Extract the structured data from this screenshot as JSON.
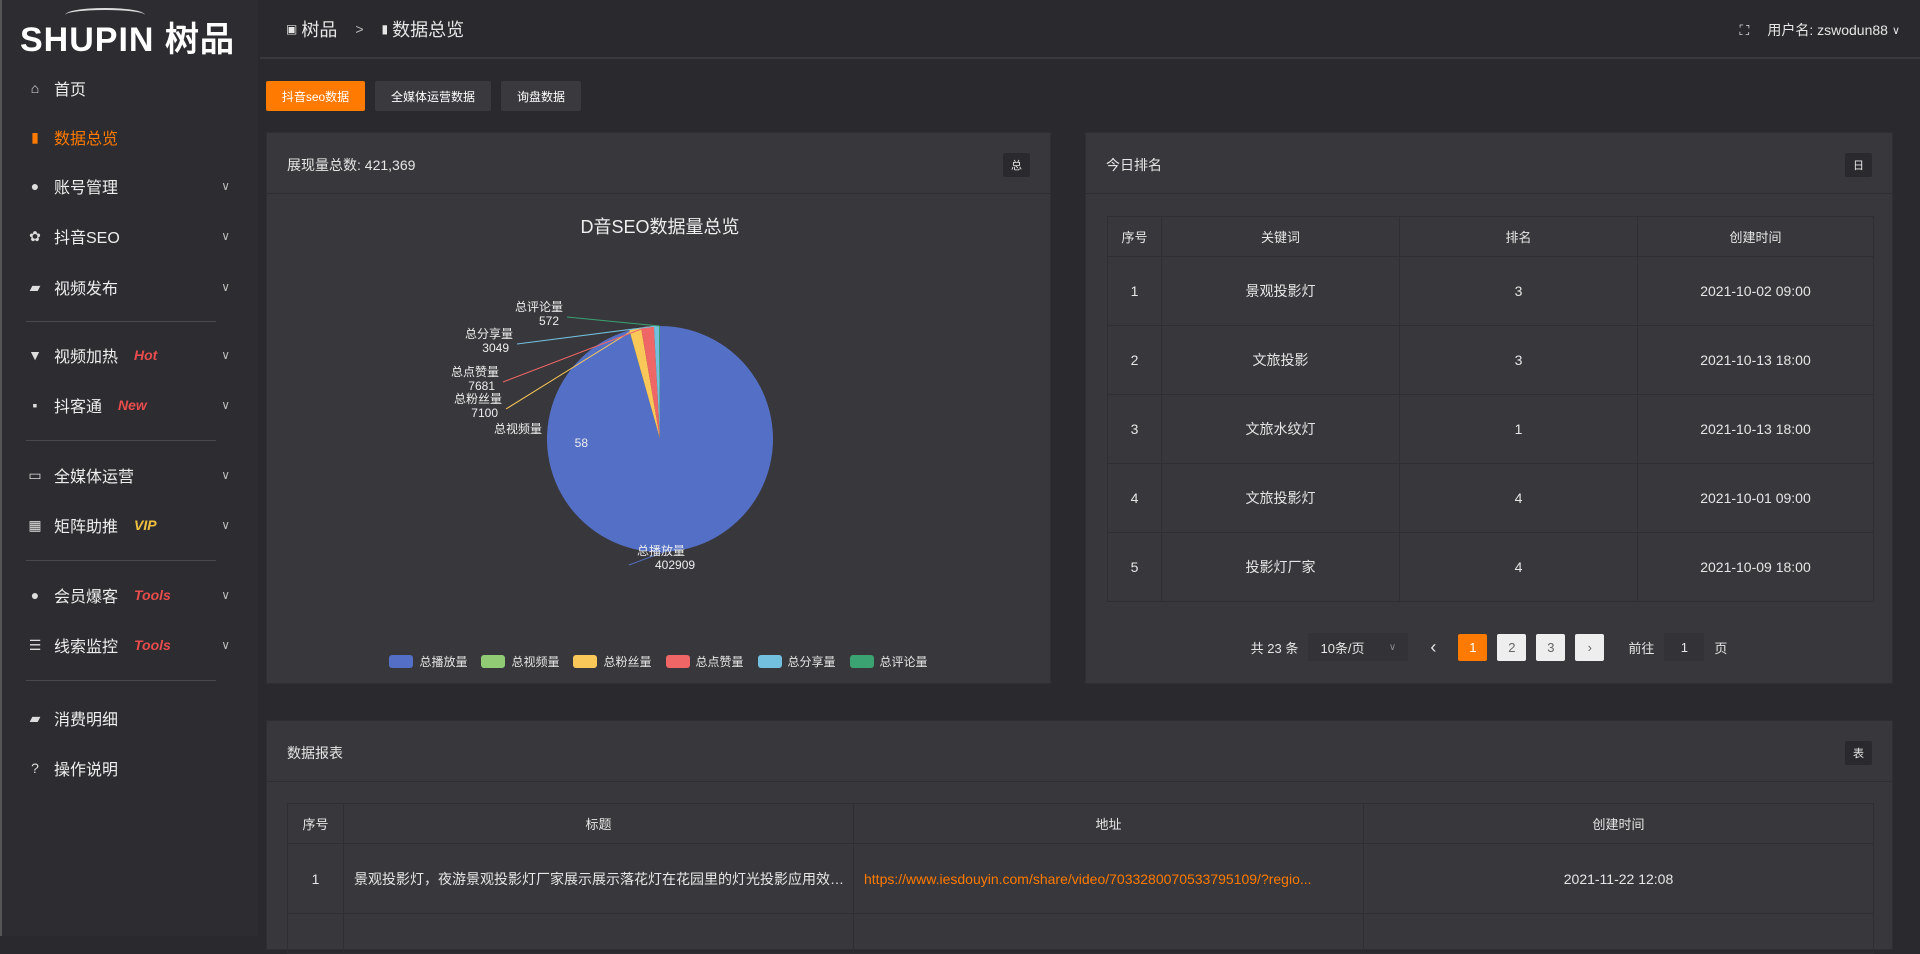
{
  "logo": "SHUPIN 树品",
  "breadcrumb": {
    "root": "树品",
    "sep": ">",
    "current": "数据总览"
  },
  "header": {
    "user_label": "用户名: zswodun88",
    "fullscreen_icon": "fullscreen-icon"
  },
  "sidebar": {
    "items": [
      {
        "label": "首页",
        "icon": "⌂"
      },
      {
        "label": "数据总览",
        "icon": "▮",
        "active": true
      },
      {
        "label": "账号管理",
        "icon": "●",
        "chev": true
      },
      {
        "label": "抖音SEO",
        "icon": "✿",
        "chev": true
      },
      {
        "label": "视频发布",
        "icon": "▰",
        "chev": true
      },
      {
        "label": "视频加热",
        "icon": "▼",
        "badge": "Hot",
        "chev": true
      },
      {
        "label": "抖客通",
        "icon": "▪",
        "badge": "New",
        "chev": true
      },
      {
        "label": "全媒体运营",
        "icon": "▭",
        "chev": true
      },
      {
        "label": "矩阵助推",
        "icon": "▦",
        "badge": "VIP",
        "chev": true
      },
      {
        "label": "会员爆客",
        "icon": "●",
        "badge": "Tools",
        "chev": true
      },
      {
        "label": "线索监控",
        "icon": "☰",
        "badge": "Tools",
        "chev": true
      },
      {
        "label": "消费明细",
        "icon": "▰"
      },
      {
        "label": "操作说明",
        "icon": "?"
      }
    ]
  },
  "tabs": [
    "抖音seo数据",
    "全媒体运营数据",
    "询盘数据"
  ],
  "overview": {
    "title": "展现量总数: 421,369",
    "tag": "总"
  },
  "chart_data": {
    "type": "pie",
    "title": "D音SEO数据量总览",
    "legend_position": "bottom",
    "categories": [
      "总播放量",
      "总视频量",
      "总粉丝量",
      "总点赞量",
      "总分享量",
      "总评论量"
    ],
    "values": [
      402909,
      58,
      7100,
      7681,
      3049,
      572
    ],
    "colors": [
      "#5470c6",
      "#91cc75",
      "#fac858",
      "#ee6666",
      "#73c0de",
      "#3ba272"
    ]
  },
  "ranking": {
    "title": "今日排名",
    "tag": "日",
    "columns": [
      "序号",
      "关键词",
      "排名",
      "创建时间"
    ],
    "rows": [
      [
        "1",
        "景观投影灯",
        "3",
        "2021-10-02 09:00"
      ],
      [
        "2",
        "文旅投影",
        "3",
        "2021-10-13 18:00"
      ],
      [
        "3",
        "文旅水纹灯",
        "1",
        "2021-10-13 18:00"
      ],
      [
        "4",
        "文旅投影灯",
        "4",
        "2021-10-01 09:00"
      ],
      [
        "5",
        "投影灯厂家",
        "4",
        "2021-10-09 18:00"
      ]
    ],
    "pager": {
      "total": "共 23 条",
      "size": "10条/页",
      "pages": [
        "1",
        "2",
        "3"
      ],
      "current": "1",
      "goto_label": "前往",
      "goto_value": "1",
      "page_unit": "页",
      "prev": "‹",
      "next": "›"
    }
  },
  "report": {
    "title": "数据报表",
    "tag": "表",
    "columns": [
      "序号",
      "标题",
      "地址",
      "创建时间"
    ],
    "rows": [
      [
        "1",
        "景观投影灯，夜游景观投影灯厂家展示展示落花灯在花园里的灯光投影应用效果 #",
        "https://www.iesdouyin.com/share/video/7033280070533795109/?regio...",
        "2021-11-22 12:08"
      ]
    ]
  },
  "accent": "#ff7a00"
}
